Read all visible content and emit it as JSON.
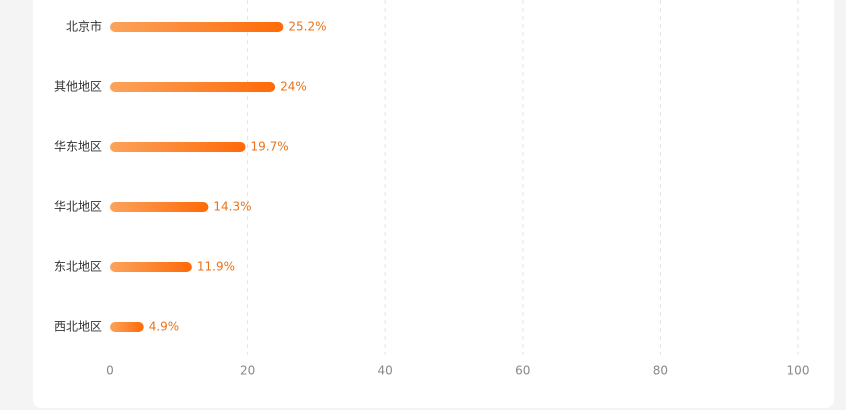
{
  "chart_data": {
    "type": "bar",
    "orientation": "horizontal",
    "categories": [
      "北京市",
      "其他地区",
      "华东地区",
      "华北地区",
      "东北地区",
      "西北地区"
    ],
    "values": [
      25.2,
      24,
      19.7,
      14.3,
      11.9,
      4.9
    ],
    "value_labels": [
      "25.2%",
      "24%",
      "19.7%",
      "14.3%",
      "11.9%",
      "4.9%"
    ],
    "colors": [
      "#fba35c",
      "#ff6a08"
    ],
    "xlim": [
      0,
      100
    ],
    "xticks": [
      0,
      20,
      40,
      60,
      80,
      100
    ],
    "grid": true
  }
}
